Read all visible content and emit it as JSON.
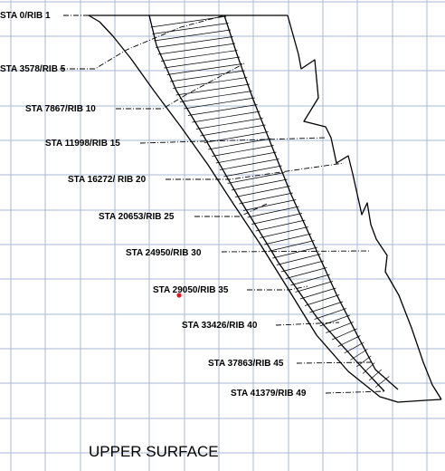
{
  "diagram": {
    "title": "UPPER SURFACE",
    "colors": {
      "grid": "#a9b9d6",
      "outline": "#000000",
      "leader": "#000000",
      "marker": "#e8141e",
      "background": "#ffffff"
    },
    "stations": [
      {
        "label": "STA 0/RIB 1"
      },
      {
        "label": "STA 3578/RIB 5"
      },
      {
        "label": "STA 7867/RIB 10"
      },
      {
        "label": "STA 11998/RIB 15"
      },
      {
        "label": "STA 16272/ RIB 20"
      },
      {
        "label": "STA 20653/RIB 25"
      },
      {
        "label": "STA 24950/RIB 30"
      },
      {
        "label": "STA 29050/RIB 35"
      },
      {
        "label": "STA 33426/RIB 40"
      },
      {
        "label": "STA 37863/RIB 45"
      },
      {
        "label": "STA 41379/RIB 49"
      }
    ]
  }
}
